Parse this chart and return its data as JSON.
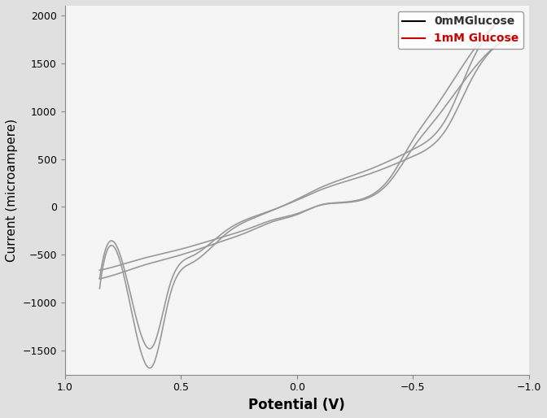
{
  "title": "",
  "xlabel": "Potential (V)",
  "ylabel": "Current (microampere)",
  "xlim": [
    1.0,
    -1.0
  ],
  "ylim": [
    -1750,
    2100
  ],
  "yticks": [
    -1500,
    -1000,
    -500,
    0,
    500,
    1000,
    1500,
    2000
  ],
  "xticks": [
    1.0,
    0.5,
    0.0,
    -0.5,
    -1.0
  ],
  "legend_labels": [
    "0mMGlucose",
    "1mM Glucose"
  ],
  "legend_colors": [
    "#333333",
    "#cc0000"
  ],
  "line_color": "#999999",
  "background_color": "#f5f5f5",
  "figure_background": "#e0e0e0"
}
